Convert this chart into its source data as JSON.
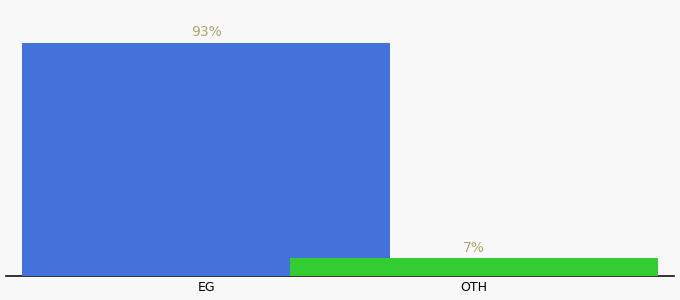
{
  "categories": [
    "EG",
    "OTH"
  ],
  "values": [
    93,
    7
  ],
  "bar_colors": [
    "#4472db",
    "#33cc33"
  ],
  "labels": [
    "93%",
    "7%"
  ],
  "ylim": [
    0,
    108
  ],
  "background_color": "#f8f8f8",
  "label_color": "#aaa870",
  "label_fontsize": 10,
  "tick_fontsize": 9,
  "bar_width": 0.55,
  "x_positions": [
    0.3,
    0.7
  ]
}
